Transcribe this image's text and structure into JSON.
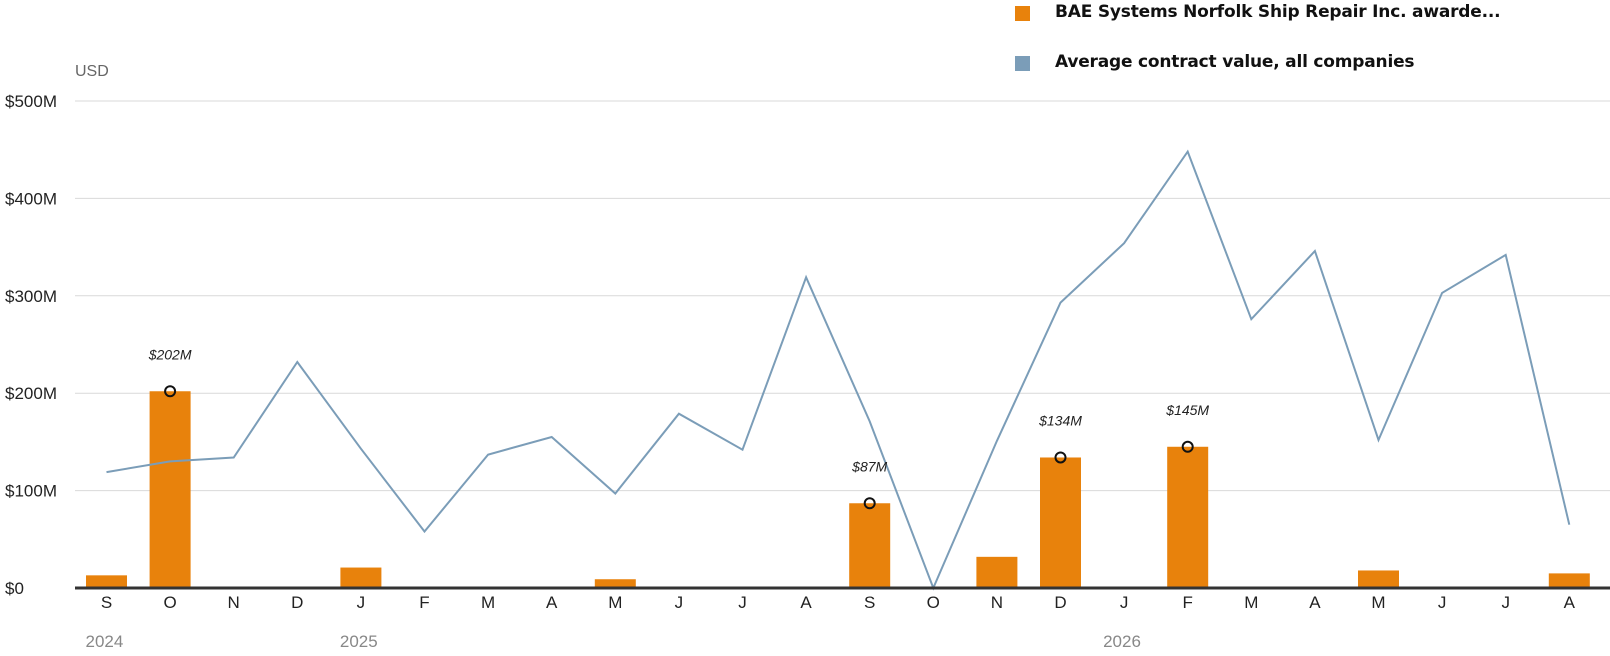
{
  "chart_data": {
    "type": "bar",
    "y_unit": "USD",
    "ylim": [
      0,
      500
    ],
    "yticks": [
      {
        "value": 0,
        "label": "$0"
      },
      {
        "value": 100,
        "label": "$100M"
      },
      {
        "value": 200,
        "label": "$200M"
      },
      {
        "value": 300,
        "label": "$300M"
      },
      {
        "value": 400,
        "label": "$400M"
      },
      {
        "value": 500,
        "label": "$500M"
      }
    ],
    "categories": [
      "S",
      "O",
      "N",
      "D",
      "J",
      "F",
      "M",
      "A",
      "M",
      "J",
      "J",
      "A",
      "S",
      "O",
      "N",
      "D",
      "J",
      "F",
      "M",
      "A",
      "M",
      "J",
      "J",
      "A"
    ],
    "years": [
      {
        "label": "2024",
        "index": 0
      },
      {
        "label": "2025",
        "index": 4
      },
      {
        "label": "2026",
        "index": 16
      }
    ],
    "grid": true,
    "legend_position": "top-right",
    "series": [
      {
        "name": "BAE Systems Norfolk Ship Repair Inc. awarde...",
        "type": "bar",
        "color": "#e8820c",
        "values": [
          13,
          202,
          0,
          0,
          21,
          0,
          0,
          0,
          9,
          0,
          0,
          0,
          87,
          0,
          32,
          134,
          0,
          145,
          0,
          0,
          18,
          0,
          0,
          15
        ]
      },
      {
        "name": "Average contract value, all companies",
        "type": "line",
        "color": "#7b9db8",
        "values": [
          119,
          130,
          134,
          232,
          143,
          58,
          137,
          155,
          97,
          179,
          142,
          319,
          171,
          0,
          151,
          293,
          354,
          448,
          276,
          346,
          152,
          303,
          342,
          65
        ]
      }
    ],
    "annotations": [
      {
        "index": 1,
        "value": 202,
        "label": "$202M"
      },
      {
        "index": 12,
        "value": 87,
        "label": "$87M"
      },
      {
        "index": 15,
        "value": 134,
        "label": "$134M"
      },
      {
        "index": 17,
        "value": 145,
        "label": "$145M"
      }
    ]
  }
}
